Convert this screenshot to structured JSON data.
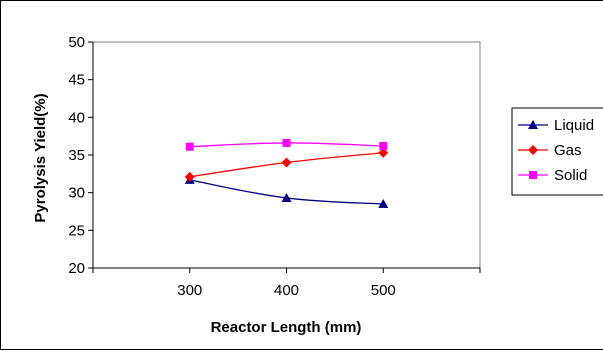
{
  "chart_data": {
    "type": "line",
    "title": "",
    "xlabel": "Reactor Length (mm)",
    "ylabel": "Pyrolysis Yield(%)",
    "categories": [
      "300",
      "400",
      "500"
    ],
    "ylim": [
      20,
      50
    ],
    "yticks": [
      "20",
      "25",
      "30",
      "35",
      "40",
      "45",
      "50"
    ],
    "grid": false,
    "legend": "right",
    "series": [
      {
        "name": "Liquid",
        "values": [
          31.7,
          29.3,
          28.5
        ],
        "color": "#000080",
        "marker": "triangle"
      },
      {
        "name": "Gas",
        "values": [
          32.1,
          34.0,
          35.3
        ],
        "color": "#ff0000",
        "marker": "diamond"
      },
      {
        "name": "Solid",
        "values": [
          36.1,
          36.6,
          36.2
        ],
        "color": "#ff00ff",
        "marker": "square"
      }
    ]
  }
}
